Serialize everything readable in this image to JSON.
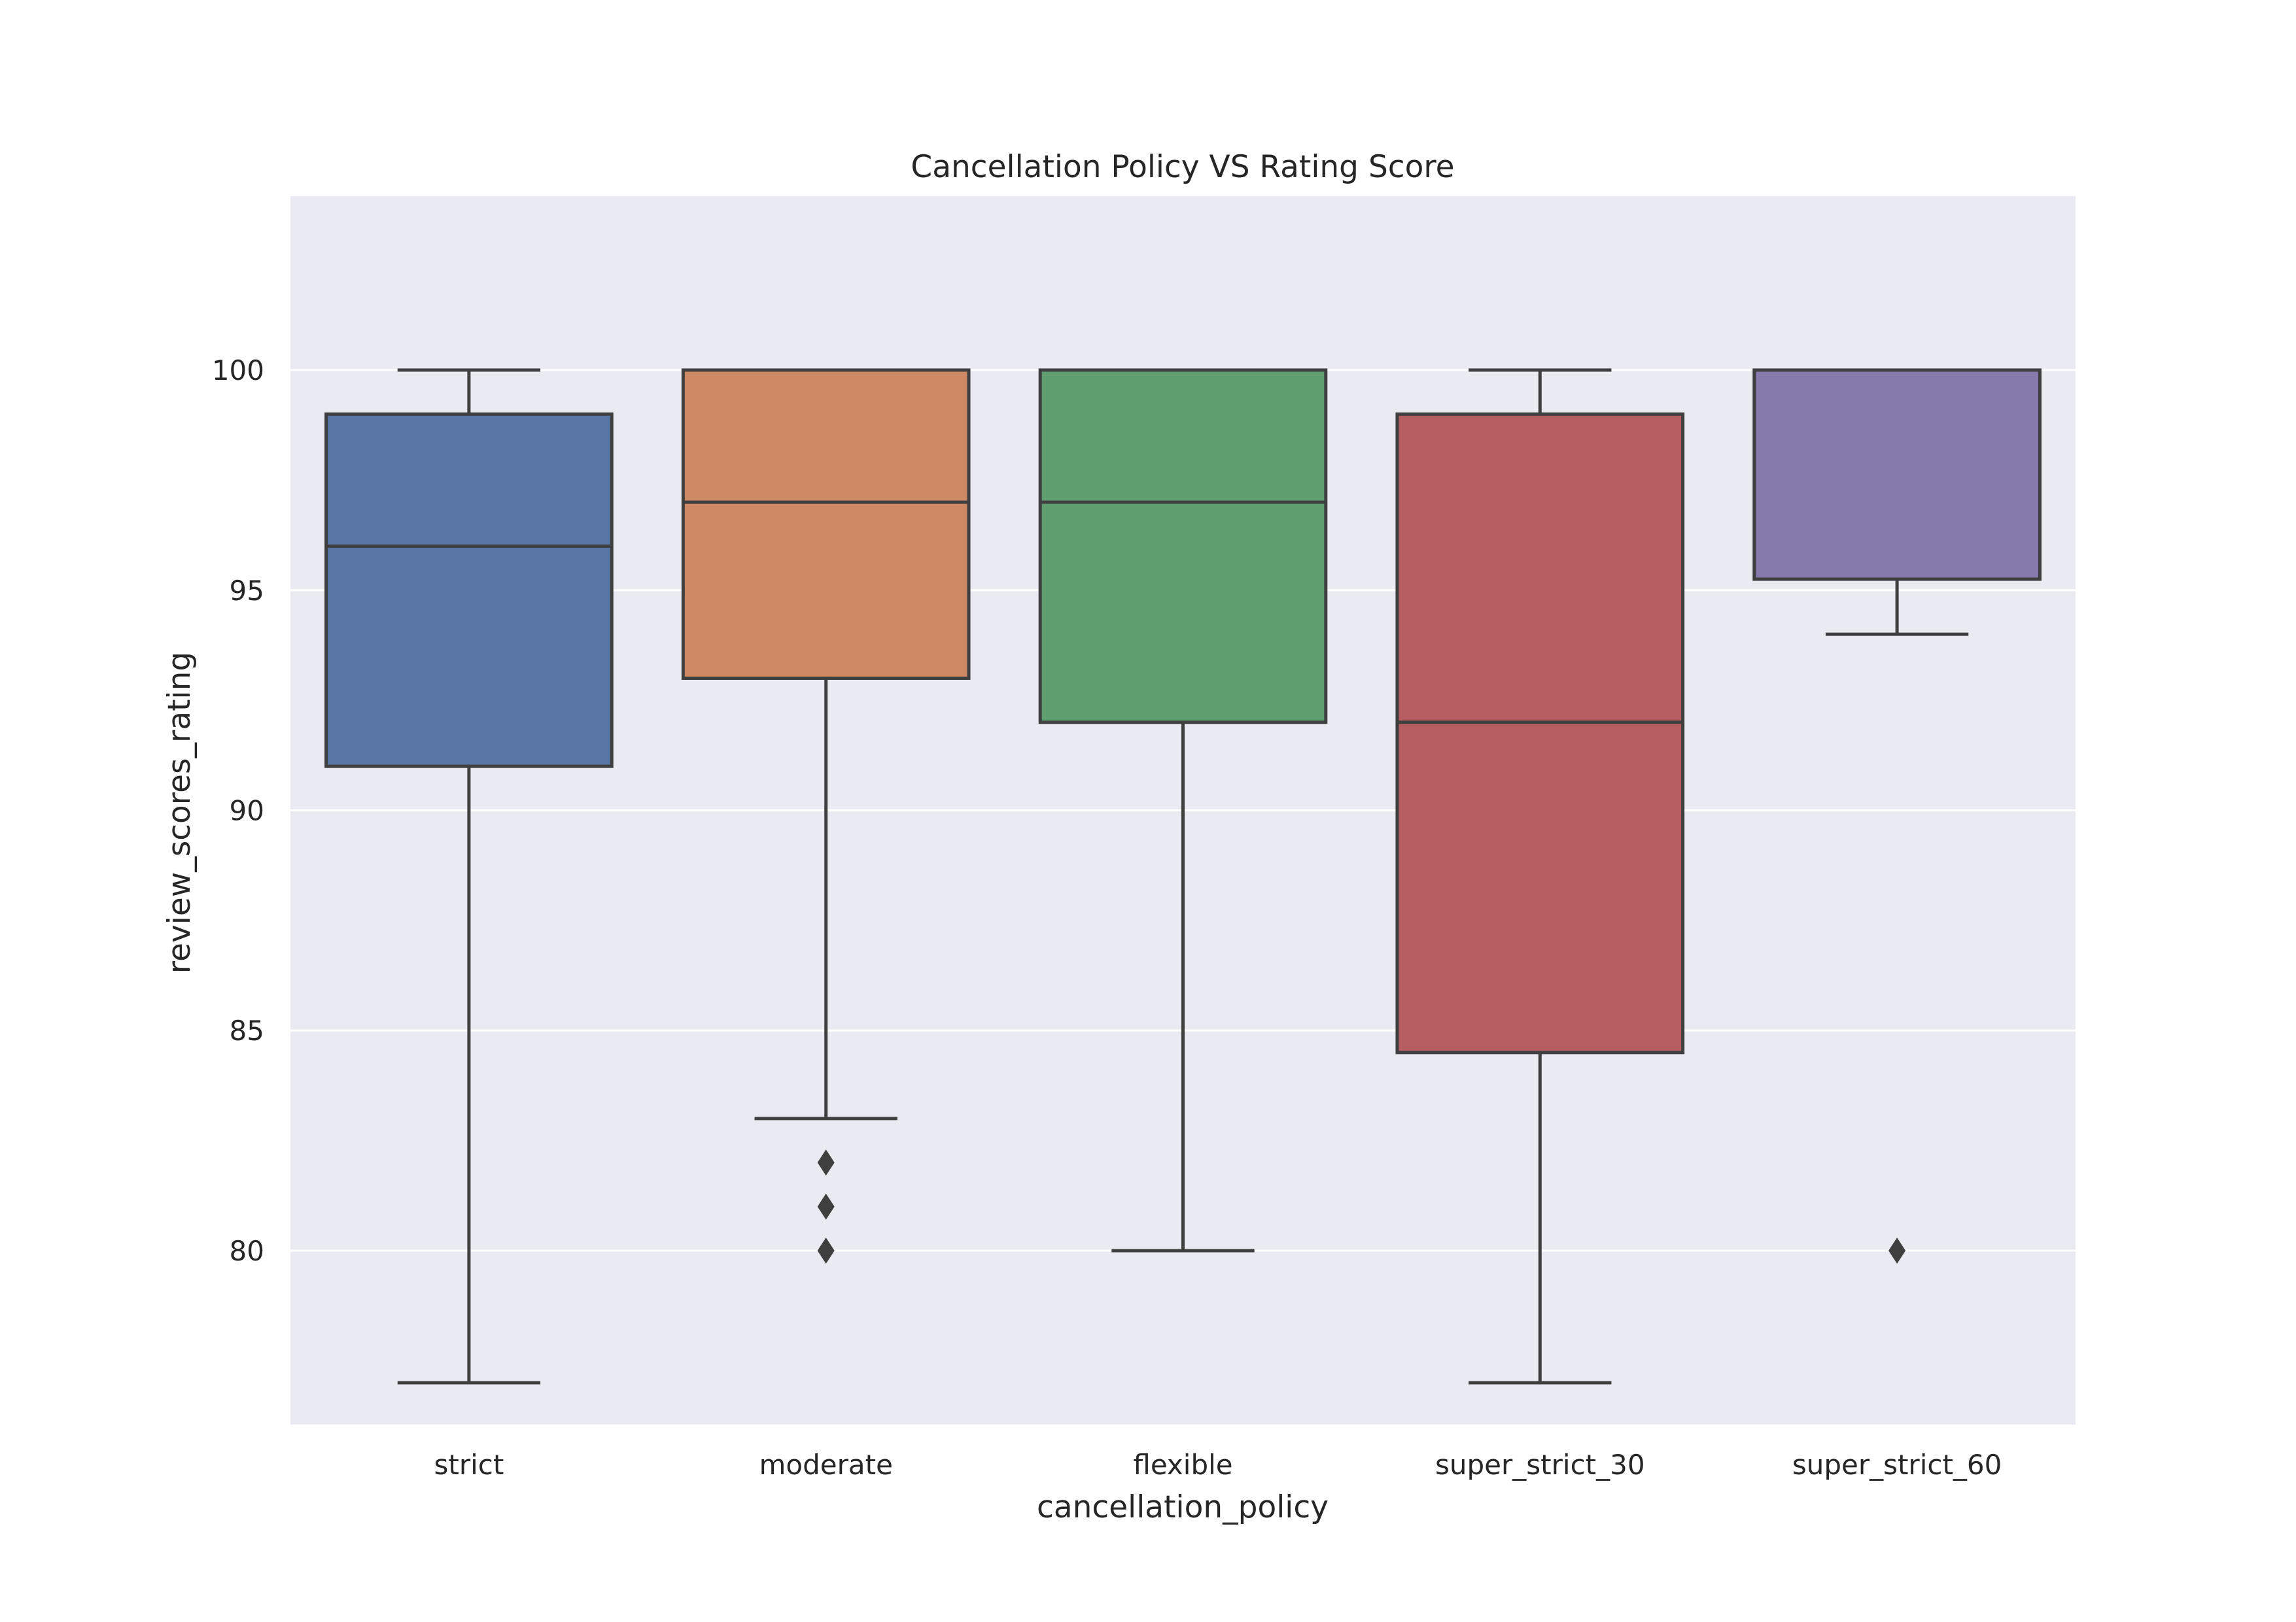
{
  "chart_data": {
    "type": "box",
    "title": "Cancellation Policy VS Rating Score",
    "xlabel": "cancellation_policy",
    "ylabel": "review_scores_rating",
    "ylim": [
      76.05,
      103.95
    ],
    "yticks": [
      80,
      85,
      90,
      95,
      100
    ],
    "grid": true,
    "background": "#eaeaf2",
    "box_edge_color": "#3f3f3f",
    "categories": [
      "strict",
      "moderate",
      "flexible",
      "super_strict_30",
      "super_strict_60"
    ],
    "boxes": [
      {
        "category": "strict",
        "color": "#5875a4",
        "whisker_low": 77,
        "q1": 91,
        "median": 96,
        "q3": 99,
        "whisker_high": 100,
        "outliers": []
      },
      {
        "category": "moderate",
        "color": "#cc8963",
        "whisker_low": 83,
        "q1": 93,
        "median": 97,
        "q3": 100,
        "whisker_high": 100,
        "outliers": [
          82,
          81,
          80
        ]
      },
      {
        "category": "flexible",
        "color": "#5f9e6e",
        "whisker_low": 80,
        "q1": 92,
        "median": 97,
        "q3": 100,
        "whisker_high": 100,
        "outliers": []
      },
      {
        "category": "super_strict_30",
        "color": "#b55d60",
        "whisker_low": 77,
        "q1": 84.5,
        "median": 92,
        "q3": 99,
        "whisker_high": 100,
        "outliers": []
      },
      {
        "category": "super_strict_60",
        "color": "#857aab",
        "whisker_low": 94,
        "q1": 95.25,
        "median": 100,
        "q3": 100,
        "whisker_high": 100,
        "outliers": [
          80
        ]
      }
    ]
  }
}
